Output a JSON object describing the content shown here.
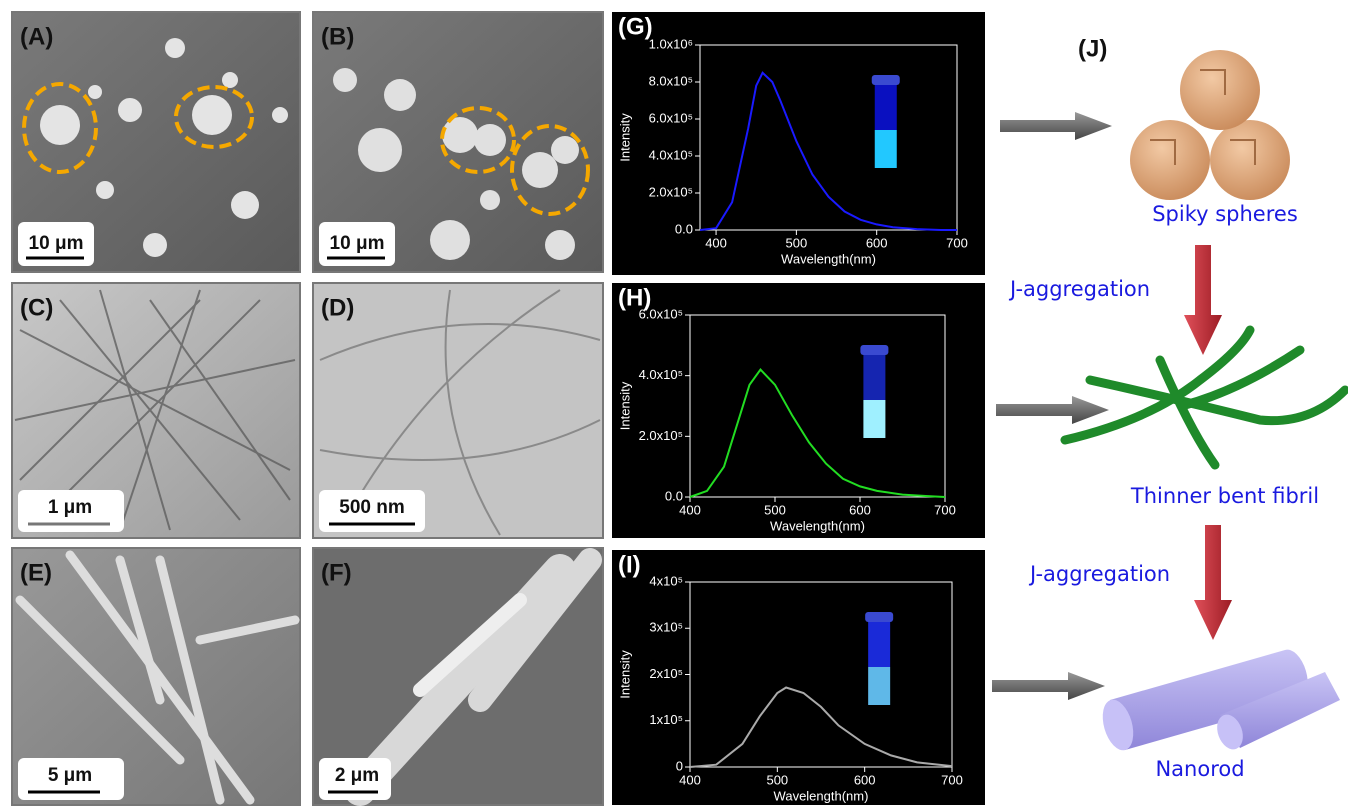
{
  "panels": [
    {
      "label": "(A)",
      "scale_bar": "10 μm"
    },
    {
      "label": "(B)",
      "scale_bar": "10 μm"
    },
    {
      "label": "(C)",
      "scale_bar": "1 μm"
    },
    {
      "label": "(D)",
      "scale_bar": "500 nm"
    },
    {
      "label": "(E)",
      "scale_bar": "5 μm"
    },
    {
      "label": "(F)",
      "scale_bar": "2 μm"
    }
  ],
  "chart_data": [
    {
      "type": "line",
      "title": "(G)",
      "x_label": "Wavelength(nm)",
      "y_label": "Intensity",
      "x": [
        380,
        400,
        420,
        440,
        450,
        458,
        470,
        480,
        500,
        520,
        540,
        560,
        580,
        600,
        620,
        650,
        680,
        700
      ],
      "series": [
        {
          "color": "#1a1aff",
          "values": [
            0,
            10000,
            150000,
            550000,
            780000,
            850000,
            800000,
            700000,
            480000,
            300000,
            180000,
            100000,
            55000,
            30000,
            15000,
            5000,
            0,
            0
          ]
        }
      ],
      "xlim": [
        380,
        700
      ],
      "ylim": [
        0,
        1000000
      ],
      "xticks": [
        400,
        500,
        600,
        700
      ],
      "yticks": [
        {
          "value": 0,
          "label": "0.0"
        },
        {
          "value": 200000,
          "label": "2.0x10⁵"
        },
        {
          "value": 400000,
          "label": "4.0x10⁵"
        },
        {
          "value": 600000,
          "label": "6.0x10⁵"
        },
        {
          "value": 800000,
          "label": "8.0x10⁵"
        },
        {
          "value": 1000000,
          "label": "1.0x10⁶"
        }
      ]
    },
    {
      "type": "line",
      "title": "(H)",
      "x_label": "Wavelength(nm)",
      "y_label": "Intensity",
      "x": [
        400,
        420,
        440,
        460,
        470,
        483,
        500,
        520,
        540,
        560,
        580,
        600,
        620,
        650,
        680,
        700
      ],
      "series": [
        {
          "color": "#22dd22",
          "values": [
            0,
            20000,
            100000,
            280000,
            370000,
            420000,
            370000,
            270000,
            180000,
            110000,
            60000,
            35000,
            20000,
            8000,
            3000,
            0
          ]
        }
      ],
      "xlim": [
        400,
        700
      ],
      "ylim": [
        0,
        600000
      ],
      "xticks": [
        400,
        500,
        600,
        700
      ],
      "yticks": [
        {
          "value": 0,
          "label": "0.0"
        },
        {
          "value": 200000,
          "label": "2.0x10⁵"
        },
        {
          "value": 400000,
          "label": "4.0x10⁵"
        },
        {
          "value": 600000,
          "label": "6.0x10⁵"
        }
      ]
    },
    {
      "type": "line",
      "title": "(I)",
      "x_label": "Wavelength(nm)",
      "y_label": "Intensity",
      "x": [
        400,
        430,
        460,
        480,
        500,
        510,
        530,
        550,
        570,
        600,
        630,
        660,
        700
      ],
      "series": [
        {
          "color": "#aaaaaa",
          "values": [
            0,
            5000,
            50000,
            110000,
            160000,
            172000,
            160000,
            130000,
            90000,
            50000,
            25000,
            10000,
            2000
          ]
        }
      ],
      "xlim": [
        400,
        700
      ],
      "ylim": [
        0,
        400000
      ],
      "xticks": [
        400,
        500,
        600,
        700
      ],
      "yticks": [
        0,
        {
          "value": 100000,
          "label": "1x10⁵"
        },
        {
          "value": 200000,
          "label": "2x10⁵"
        },
        {
          "value": 300000,
          "label": "3x10⁵"
        },
        {
          "value": 400000,
          "label": "4x10⁵"
        }
      ]
    }
  ],
  "scheme": {
    "label": "(J)",
    "stage_1": "Spiky spheres",
    "step_1": "J-aggregation",
    "stage_2": "Thinner bent fibril",
    "step_2": "J-aggregation",
    "stage_3": "Nanorod"
  }
}
